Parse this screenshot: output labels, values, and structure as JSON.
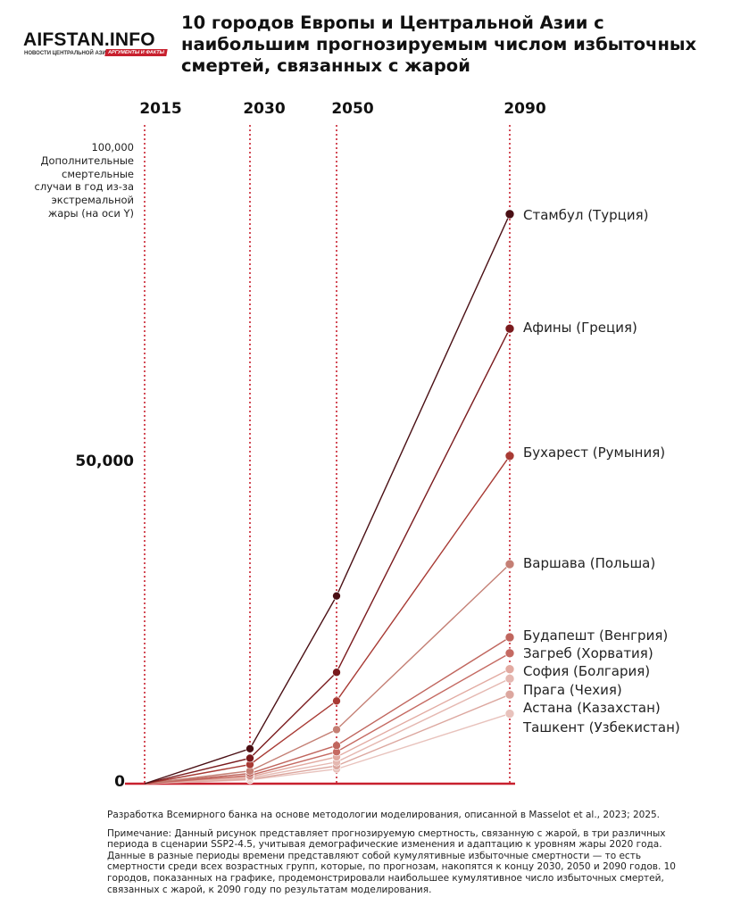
{
  "logo": {
    "name": "AIFSTAN.INFO",
    "tagline": "НОВОСТИ ЦЕНТРАЛЬНОЙ АЗИИ",
    "badge": "АРГУМЕНТЫ И ФАКТЫ"
  },
  "title": "10 городов Европы и Центральной Азии с наибольшим прогнозируемым числом избыточных смертей, связанных с жарой",
  "chart_data": {
    "type": "line",
    "title": "10 городов Европы и Центральной Азии с наибольшим прогнозируемым числом избыточных смертей, связанных с жарой",
    "x": [
      2015,
      2030,
      2050,
      2090
    ],
    "x_tick_labels": [
      "2015",
      "2030",
      "2050",
      "2090"
    ],
    "ylabel": "100,000 Дополнительные смертельные случаи в год из-за экстремальной жары (на оси Y)",
    "y_tick_labels": [
      "0",
      "50,000"
    ],
    "ylim": [
      0,
      100000
    ],
    "grid": "vertical dotted red lines at each year",
    "legend": "labels at line ends (right)",
    "series": [
      {
        "name": "Стамбул (Турция)",
        "color": "#4a0f14",
        "values": [
          0,
          5500,
          29500,
          89500
        ]
      },
      {
        "name": "Афины (Греция)",
        "color": "#7a1a1d",
        "values": [
          0,
          4000,
          17500,
          71500
        ]
      },
      {
        "name": "Бухарест (Румыния)",
        "color": "#a83a34",
        "values": [
          0,
          3000,
          13000,
          51500
        ]
      },
      {
        "name": "Варшава (Польша)",
        "color": "#c47f74",
        "values": [
          0,
          2000,
          8500,
          34500
        ]
      },
      {
        "name": "Будапешт (Венгрия)",
        "color": "#c0665e",
        "values": [
          0,
          1600,
          6000,
          23000
        ]
      },
      {
        "name": "Загреб (Хорватия)",
        "color": "#c56a62",
        "values": [
          0,
          1300,
          5000,
          20500
        ]
      },
      {
        "name": "София (Болгария)",
        "color": "#e2aaa1",
        "values": [
          0,
          1100,
          4200,
          18000
        ]
      },
      {
        "name": "Прага (Чехия)",
        "color": "#e5b8b1",
        "values": [
          0,
          900,
          3400,
          16500
        ]
      },
      {
        "name": "Астана (Казахстан)",
        "color": "#dca79f",
        "values": [
          0,
          700,
          2800,
          14000
        ]
      },
      {
        "name": "Ташкент (Узбекистан)",
        "color": "#e8c2bc",
        "values": [
          0,
          600,
          2300,
          11000
        ]
      }
    ]
  },
  "footer": {
    "source": "Разработка Всемирного банка на основе методологии моделирования, описанной в Masselot et al., 2023; 2025.",
    "note": "Примечание: Данный рисунок представляет прогнозируемую смертность, связанную с жарой, в три различных периода в сценарии SSP2-4.5, учитывая демографические изменения и адаптацию к уровням жары 2020 года. Данные в разные периоды времени представляют собой кумулятивные избыточные смертности — то есть смертности среди всех возрастных групп, которые, по прогнозам, накопятся к концу 2030, 2050 и 2090 годов. 10 городов, показанных на графике, продемонстрировали наибольшее кумулятивное число избыточных смертей, связанных с жарой, к 2090 году по результатам моделирования."
  }
}
